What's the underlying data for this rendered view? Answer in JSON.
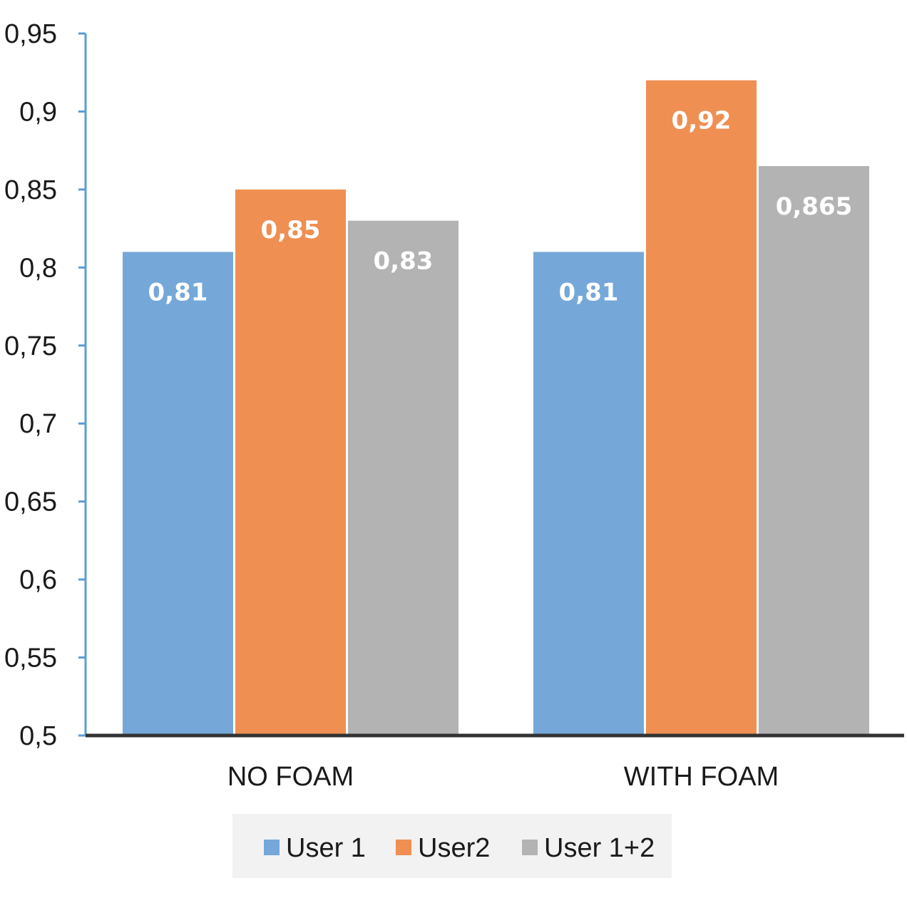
{
  "chart_data": {
    "type": "bar",
    "categories": [
      "NO FOAM",
      "WITH FOAM"
    ],
    "series": [
      {
        "name": "User 1",
        "values": [
          0.81,
          0.81
        ],
        "labels": [
          "0,81",
          "0,81"
        ],
        "color": "#75a8d8"
      },
      {
        "name": "User2",
        "values": [
          0.85,
          0.92
        ],
        "labels": [
          "0,85",
          "0,92"
        ],
        "color": "#ef8f52"
      },
      {
        "name": "User 1+2",
        "values": [
          0.83,
          0.865
        ],
        "labels": [
          "0,83",
          "0,865"
        ],
        "color": "#b3b3b3"
      }
    ],
    "ylim": [
      0.5,
      0.95
    ],
    "yticks": [
      0.5,
      0.55,
      0.6,
      0.65,
      0.7,
      0.75,
      0.8,
      0.85,
      0.9,
      0.95
    ],
    "ytick_labels": [
      "0,5",
      "0,55",
      "0,6",
      "0,65",
      "0,7",
      "0,75",
      "0,8",
      "0,85",
      "0,9",
      "0,95"
    ],
    "title": "",
    "xlabel": "",
    "ylabel": "",
    "grid": false,
    "legend": "bottom",
    "colors": {
      "y_axis": "#5b9bd5",
      "x_axis": "#333333",
      "legend_bg": "#f2f2f2"
    }
  }
}
